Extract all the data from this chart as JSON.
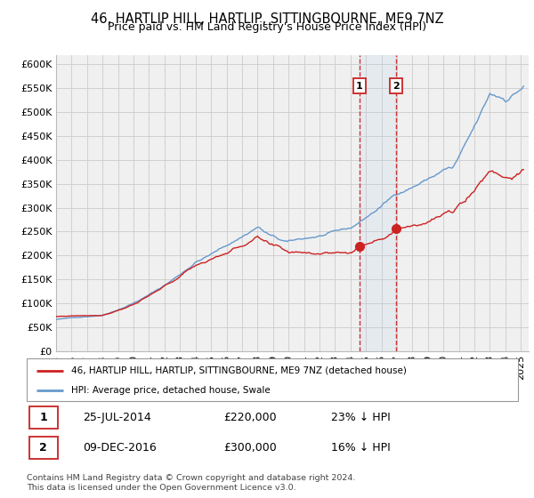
{
  "title": "46, HARTLIP HILL, HARTLIP, SITTINGBOURNE, ME9 7NZ",
  "subtitle": "Price paid vs. HM Land Registry's House Price Index (HPI)",
  "ylim": [
    0,
    620000
  ],
  "yticks": [
    0,
    50000,
    100000,
    150000,
    200000,
    250000,
    300000,
    350000,
    400000,
    450000,
    500000,
    550000,
    600000
  ],
  "ytick_labels": [
    "£0",
    "£50K",
    "£100K",
    "£150K",
    "£200K",
    "£250K",
    "£300K",
    "£350K",
    "£400K",
    "£450K",
    "£500K",
    "£550K",
    "£600K"
  ],
  "xlim_start": 1995.0,
  "xlim_end": 2025.5,
  "purchase1_date": 2014.56,
  "purchase1_price": 220000,
  "purchase1_date_str": "25-JUL-2014",
  "purchase2_date": 2016.93,
  "purchase2_price": 300000,
  "purchase2_date_str": "09-DEC-2016",
  "red_line_color": "#cc2222",
  "blue_line_color": "#6699cc",
  "vline_color": "#cc3333",
  "bg_color": "#f0f0f0",
  "grid_color": "#cccccc",
  "legend_line1": "46, HARTLIP HILL, HARTLIP, SITTINGBOURNE, ME9 7NZ (detached house)",
  "legend_line2": "HPI: Average price, detached house, Swale",
  "purchase1_pct": "23% ↓ HPI",
  "purchase2_pct": "16% ↓ HPI",
  "footnote": "Contains HM Land Registry data © Crown copyright and database right 2024.\nThis data is licensed under the Open Government Licence v3.0.",
  "xticks": [
    1995,
    1996,
    1997,
    1998,
    1999,
    2000,
    2001,
    2002,
    2003,
    2004,
    2005,
    2006,
    2007,
    2008,
    2009,
    2010,
    2011,
    2012,
    2013,
    2014,
    2015,
    2016,
    2017,
    2018,
    2019,
    2020,
    2021,
    2022,
    2023,
    2024,
    2025
  ]
}
